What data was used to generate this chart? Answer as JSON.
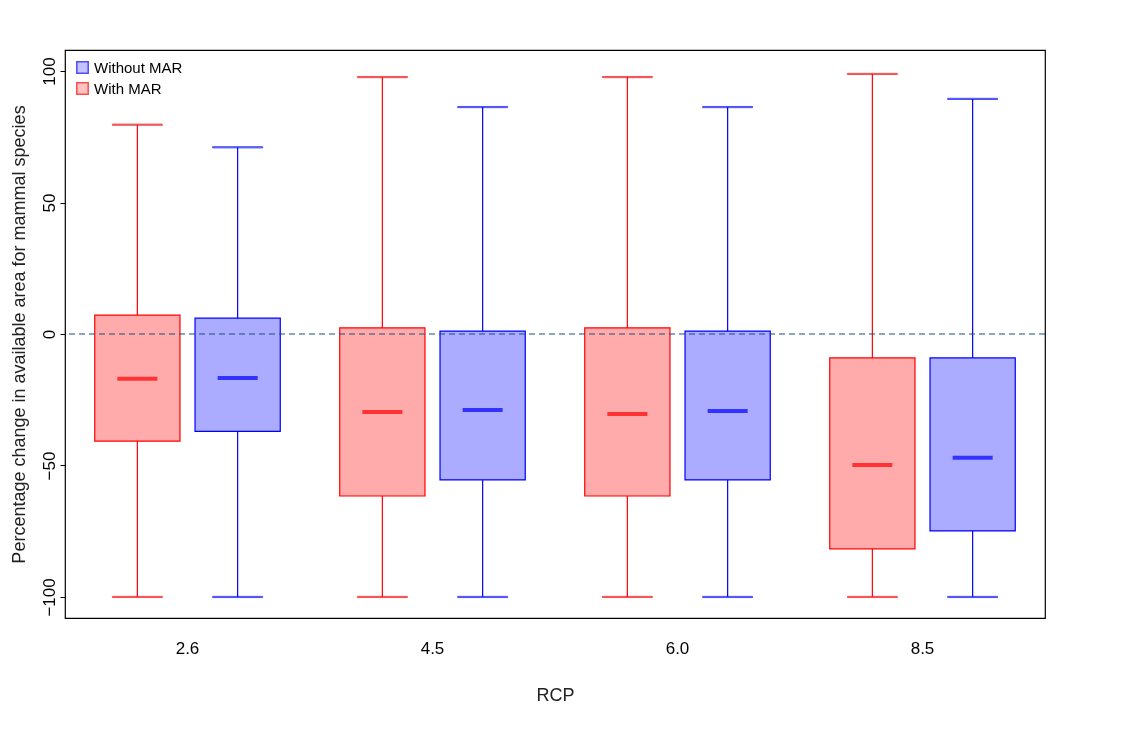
{
  "chart_data": {
    "type": "box",
    "xlabel": "RCP",
    "ylabel": "Percentage change in available area for mammal species",
    "categories": [
      "2.6",
      "4.5",
      "6.0",
      "8.5"
    ],
    "series": [
      {
        "name": "Without MAR",
        "color": "#0000ff",
        "boxes": [
          {
            "low": -100,
            "q1": -37,
            "median": -16.7,
            "q3": 6,
            "high": 71
          },
          {
            "low": -100,
            "q1": -55.5,
            "median": -28.9,
            "q3": 1.1,
            "high": 86.3
          },
          {
            "low": -100,
            "q1": -55.5,
            "median": -29.3,
            "q3": 1.1,
            "high": 86.3
          },
          {
            "low": -100,
            "q1": -74.9,
            "median": -47.1,
            "q3": -9.1,
            "high": 89.4
          }
        ]
      },
      {
        "name": "With MAR",
        "color": "#ff0000",
        "boxes": [
          {
            "low": -100,
            "q1": -40.7,
            "median": -17,
            "q3": 7.2,
            "high": 79.6
          },
          {
            "low": -100,
            "q1": -61.6,
            "median": -29.7,
            "q3": 2.3,
            "high": 97.7
          },
          {
            "low": -100,
            "q1": -61.6,
            "median": -30.4,
            "q3": 2.3,
            "high": 97.7
          },
          {
            "low": -100,
            "q1": -81.7,
            "median": -49.8,
            "q3": -9.1,
            "high": 98.9
          }
        ]
      }
    ],
    "ylim": [
      -108,
      108
    ],
    "yticks": [
      -100,
      -50,
      0,
      50,
      100
    ],
    "grid": false,
    "legend": "top left",
    "ref_lines": [
      {
        "axis": "y",
        "value": 0,
        "color": "#1f4e79",
        "line_style": "dashed"
      }
    ]
  }
}
